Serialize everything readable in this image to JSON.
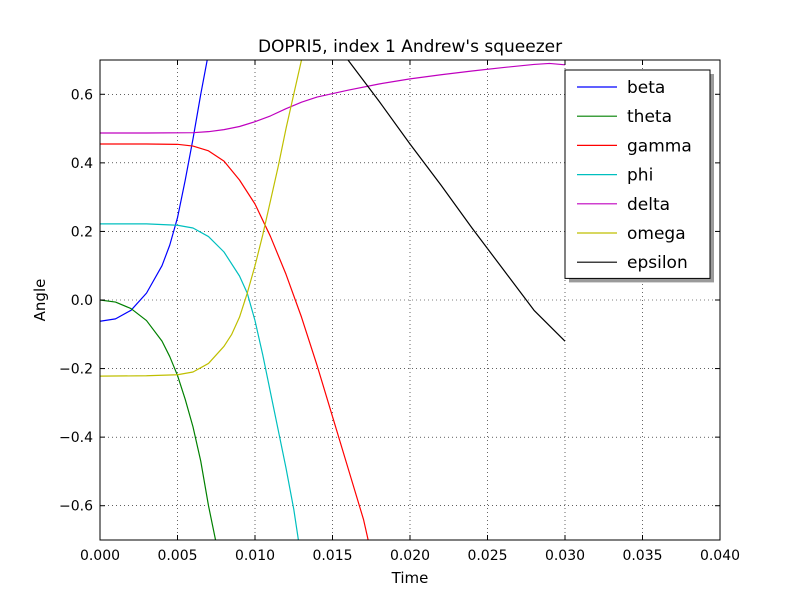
{
  "chart_data": {
    "type": "line",
    "title": "DOPRI5, index 1 Andrew's squeezer",
    "xlabel": "Time",
    "ylabel": "Angle",
    "xlim": [
      0.0,
      0.04
    ],
    "ylim": [
      -0.7,
      0.7
    ],
    "xticks": [
      "0.000",
      "0.005",
      "0.010",
      "0.015",
      "0.020",
      "0.025",
      "0.030",
      "0.035",
      "0.040"
    ],
    "yticks": [
      "−0.6",
      "−0.4",
      "−0.2",
      "0.0",
      "0.2",
      "0.4",
      "0.6"
    ],
    "grid": true,
    "legend_position": "upper right",
    "series": [
      {
        "name": "beta",
        "color": "#0000ff",
        "x": [
          0.0,
          0.001,
          0.002,
          0.003,
          0.004,
          0.0045,
          0.005,
          0.0055,
          0.006,
          0.0065,
          0.007
        ],
        "y": [
          -0.062,
          -0.055,
          -0.03,
          0.02,
          0.1,
          0.16,
          0.24,
          0.35,
          0.47,
          0.6,
          0.72
        ]
      },
      {
        "name": "theta",
        "color": "#008000",
        "x": [
          0.0,
          0.001,
          0.002,
          0.003,
          0.004,
          0.0045,
          0.005,
          0.0055,
          0.006,
          0.0065,
          0.007,
          0.0075
        ],
        "y": [
          0.0,
          -0.006,
          -0.025,
          -0.06,
          -0.12,
          -0.165,
          -0.22,
          -0.29,
          -0.37,
          -0.47,
          -0.6,
          -0.71
        ]
      },
      {
        "name": "gamma",
        "color": "#ff0000",
        "x": [
          0.0,
          0.003,
          0.005,
          0.006,
          0.007,
          0.008,
          0.009,
          0.01,
          0.011,
          0.012,
          0.013,
          0.014,
          0.015,
          0.016,
          0.017,
          0.0173
        ],
        "y": [
          0.455,
          0.455,
          0.454,
          0.449,
          0.435,
          0.405,
          0.35,
          0.28,
          0.185,
          0.075,
          -0.05,
          -0.19,
          -0.34,
          -0.49,
          -0.64,
          -0.7
        ]
      },
      {
        "name": "phi",
        "color": "#00bfbf",
        "x": [
          0.0,
          0.003,
          0.005,
          0.006,
          0.007,
          0.008,
          0.009,
          0.0095,
          0.01,
          0.0105,
          0.011,
          0.0115,
          0.012,
          0.0125,
          0.0128
        ],
        "y": [
          0.222,
          0.222,
          0.218,
          0.21,
          0.185,
          0.14,
          0.07,
          0.02,
          -0.06,
          -0.16,
          -0.27,
          -0.38,
          -0.49,
          -0.61,
          -0.7
        ]
      },
      {
        "name": "delta",
        "color": "#bf00bf",
        "x": [
          0.0,
          0.003,
          0.006,
          0.007,
          0.008,
          0.009,
          0.01,
          0.011,
          0.012,
          0.013,
          0.014,
          0.016,
          0.018,
          0.02,
          0.022,
          0.024,
          0.026,
          0.028,
          0.029,
          0.03
        ],
        "y": [
          0.487,
          0.487,
          0.488,
          0.491,
          0.497,
          0.506,
          0.52,
          0.537,
          0.558,
          0.577,
          0.592,
          0.612,
          0.63,
          0.645,
          0.657,
          0.668,
          0.678,
          0.687,
          0.69,
          0.686
        ]
      },
      {
        "name": "omega",
        "color": "#bfbf00",
        "x": [
          0.0,
          0.003,
          0.005,
          0.006,
          0.007,
          0.008,
          0.0085,
          0.009,
          0.0095,
          0.01,
          0.0105,
          0.011,
          0.0115,
          0.012,
          0.0125,
          0.013
        ],
        "y": [
          -0.222,
          -0.221,
          -0.218,
          -0.21,
          -0.185,
          -0.135,
          -0.1,
          -0.05,
          0.02,
          0.1,
          0.19,
          0.29,
          0.39,
          0.5,
          0.6,
          0.7
        ]
      },
      {
        "name": "epsilon",
        "color": "#000000",
        "x": [
          0.016,
          0.018,
          0.02,
          0.022,
          0.024,
          0.026,
          0.028,
          0.03
        ],
        "y": [
          0.7,
          0.58,
          0.455,
          0.335,
          0.21,
          0.09,
          -0.03,
          -0.12
        ]
      }
    ]
  }
}
